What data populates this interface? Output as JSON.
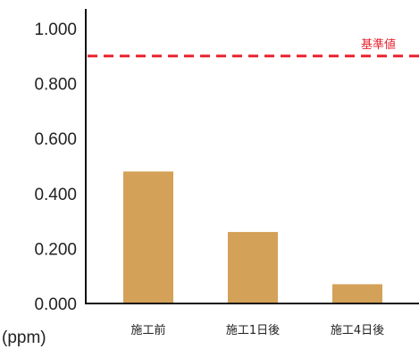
{
  "chart_data": {
    "type": "bar",
    "categories": [
      "施工前",
      "施工1日後",
      "施工4日後"
    ],
    "values": [
      0.48,
      0.26,
      0.07
    ],
    "ylabel": "(ppm)",
    "ylim": [
      0,
      1.0
    ],
    "yticks": [
      "0.000",
      "0.200",
      "0.400",
      "0.600",
      "0.800",
      "1.000"
    ],
    "reference_line": {
      "value": 0.9,
      "label": "基準値",
      "color": "#e8232f",
      "style": "dashed"
    },
    "bar_color": "#d4a158",
    "grid": false,
    "legend": "none"
  }
}
